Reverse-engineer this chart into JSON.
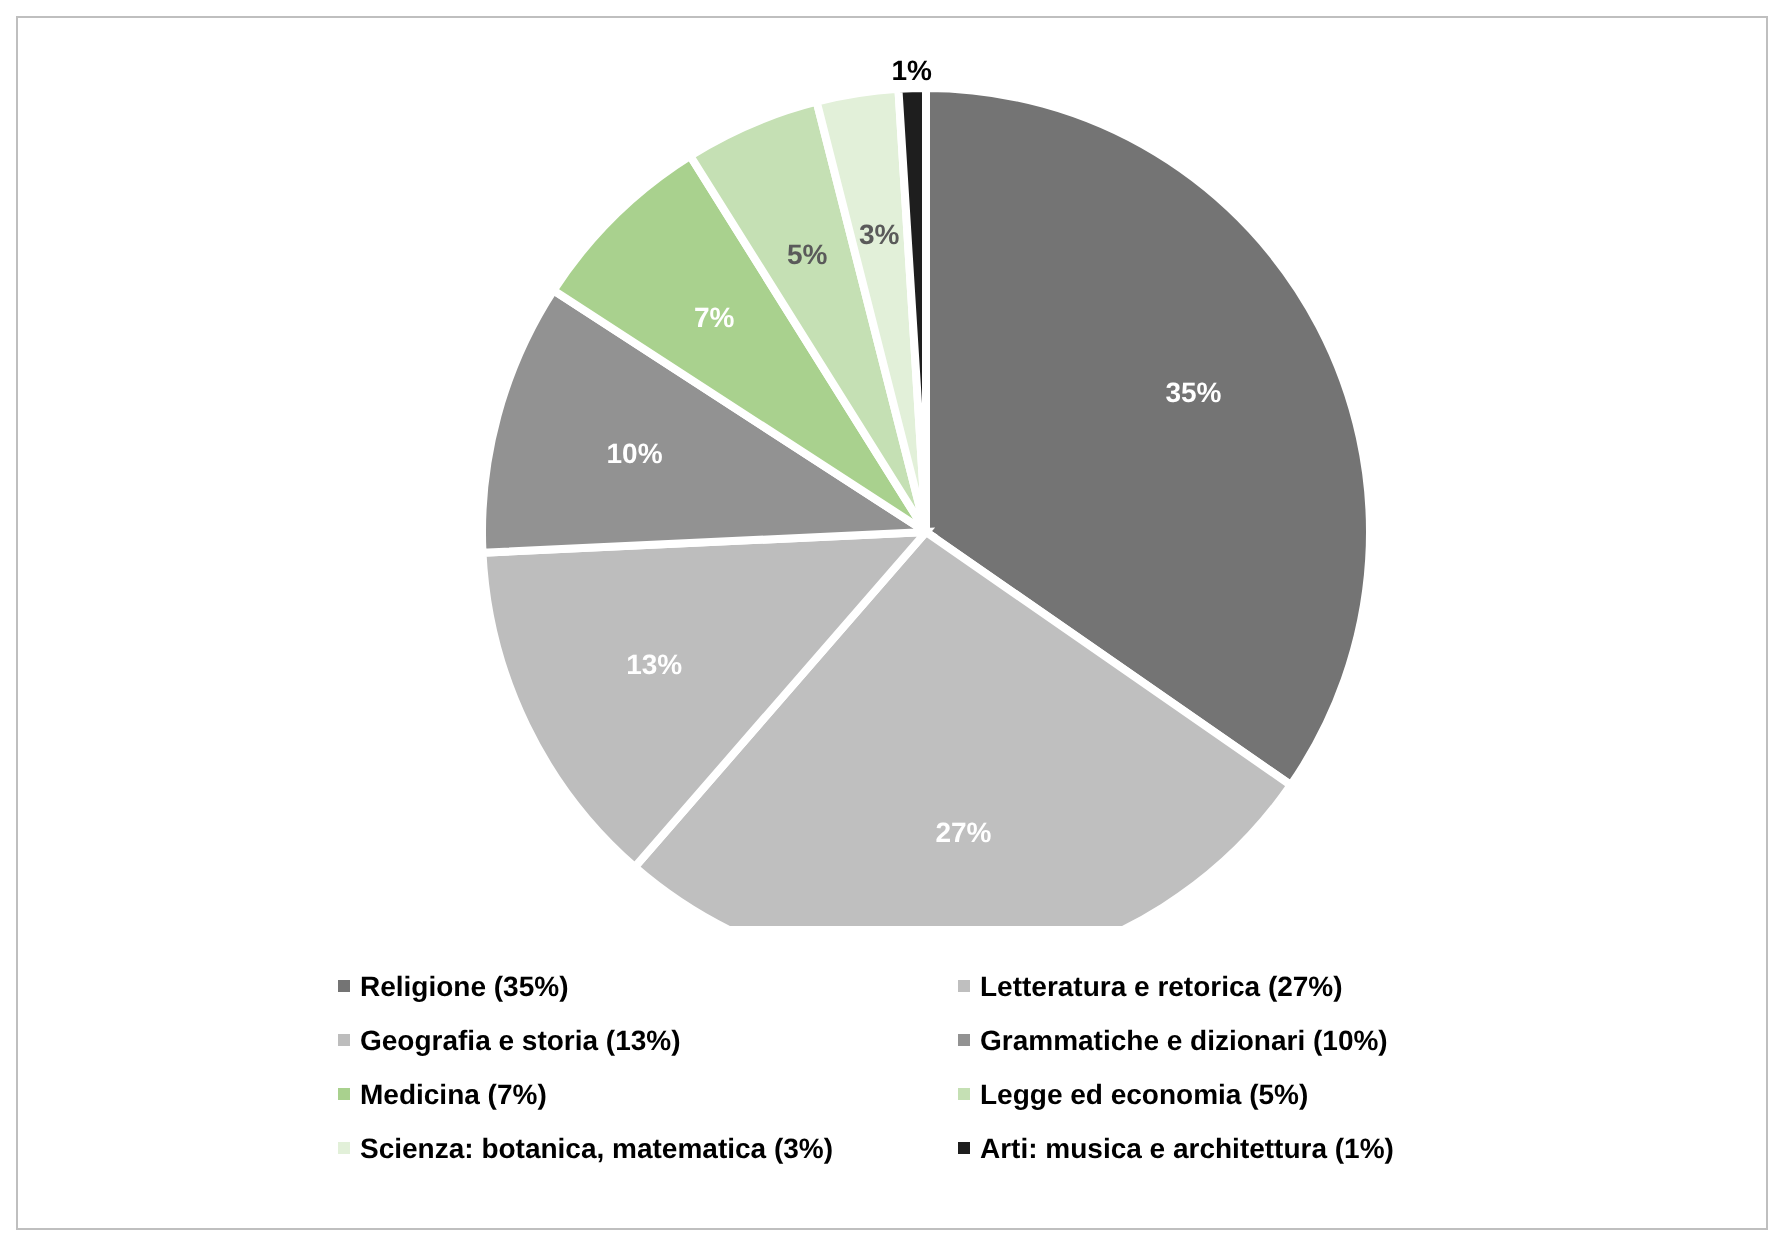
{
  "chart_data": {
    "type": "pie",
    "categories": [
      "Religione (35%)",
      "Letteratura e retorica (27%)",
      "Geografia e storia (13%)",
      "Grammatiche e dizionari (10%)",
      "Medicina (7%)",
      "Legge ed economia (5%)",
      "Scienza: botanica, matematica (3%)",
      "Arti: musica e architettura (1%)"
    ],
    "values": [
      35,
      27,
      13,
      10,
      7,
      5,
      3,
      1
    ],
    "value_labels": [
      "35%",
      "27%",
      "13%",
      "10%",
      "7%",
      "5%",
      "3%",
      "1%"
    ],
    "colors": [
      "#747474",
      "#bfbfbf",
      "#bdbdbd",
      "#929292",
      "#a9d18e",
      "#c5e0b4",
      "#e2f0d9",
      "#1e1e1e"
    ],
    "legend": "bottom"
  }
}
